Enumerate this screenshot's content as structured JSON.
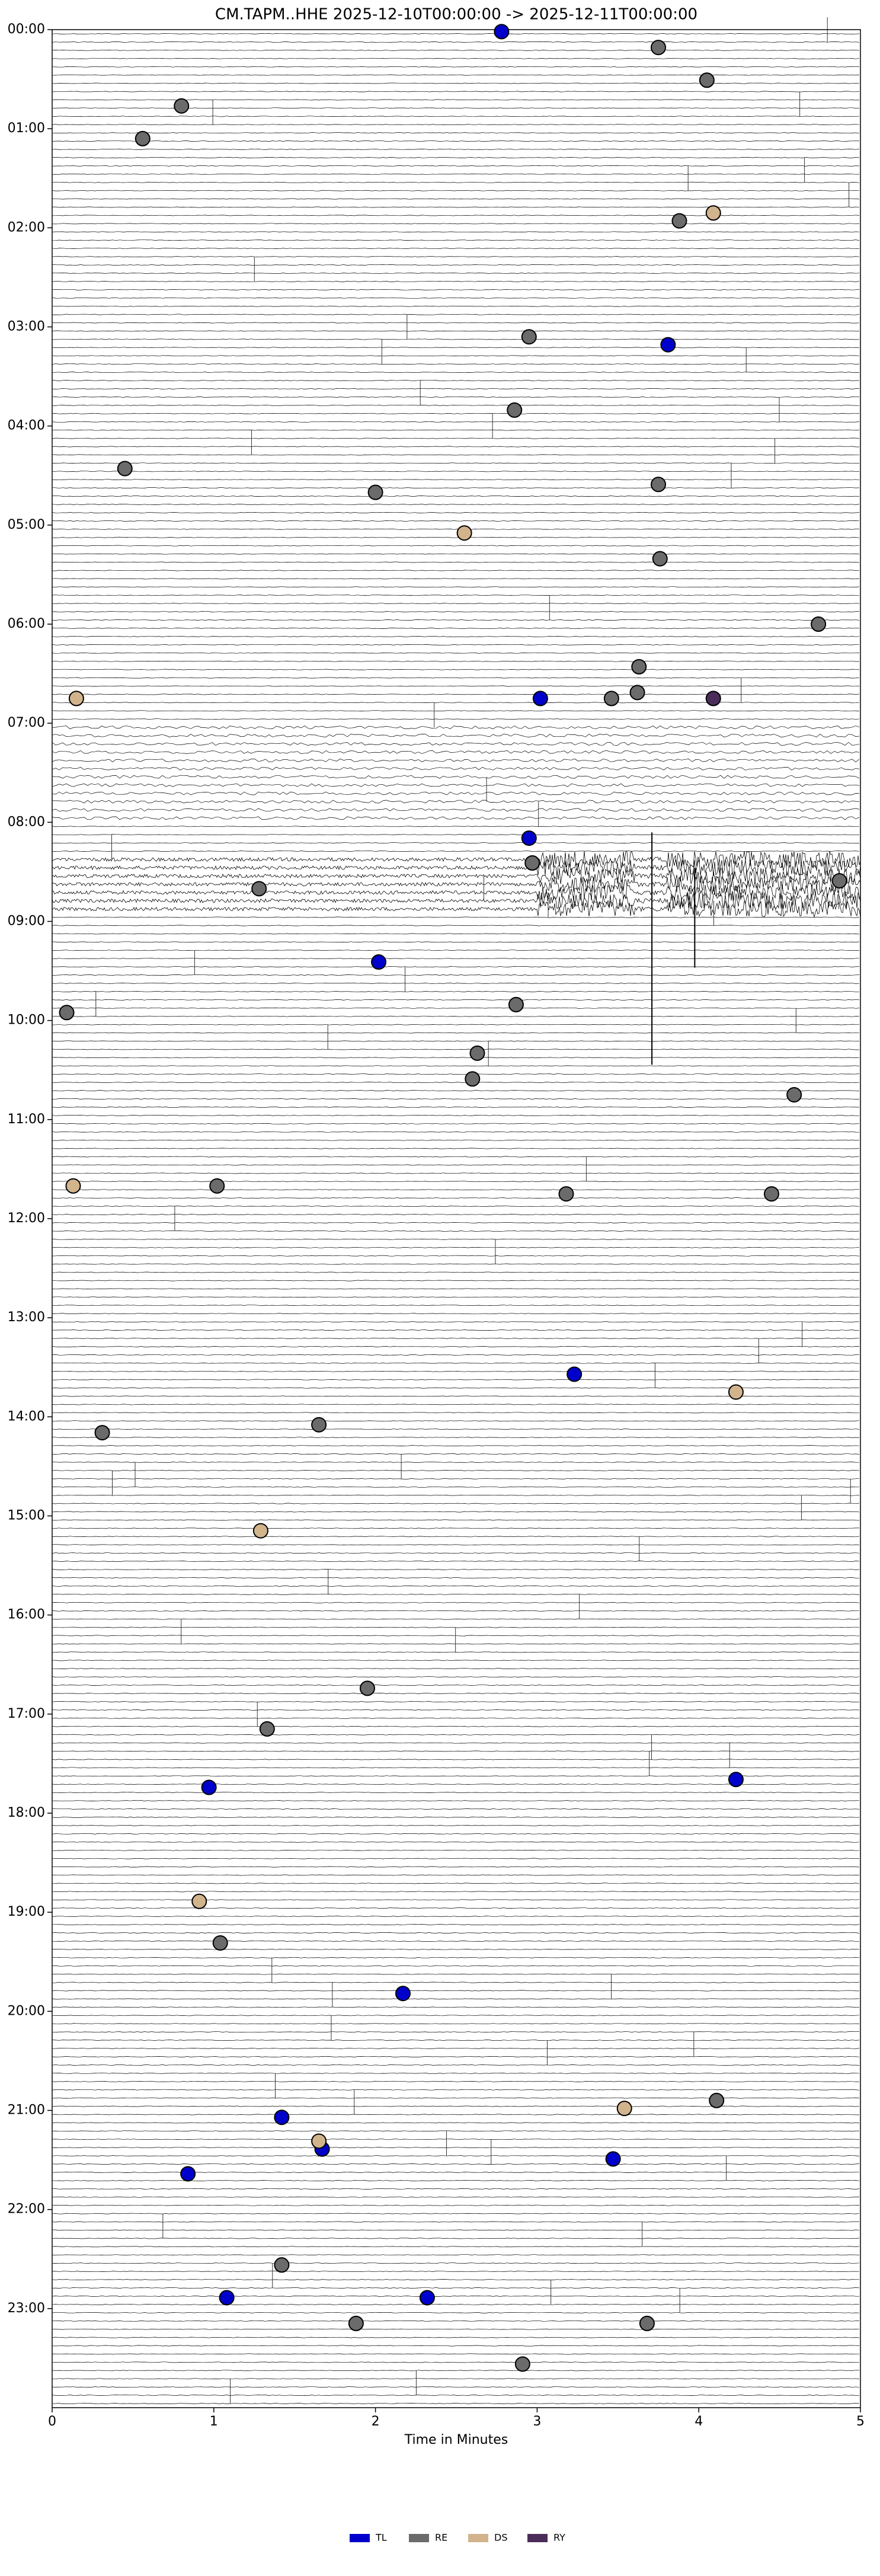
{
  "chart_data": {
    "type": "scatter",
    "title": "CM.TAPM..HHE  2025-12-10T00:00:00 -> 2025-12-11T00:00:00",
    "x_label": "Time in Minutes",
    "xlim": [
      0,
      5
    ],
    "xticks": [
      0,
      1,
      2,
      3,
      4,
      5
    ],
    "ylim": [
      0,
      24
    ],
    "y_inverted": true,
    "yticks": [
      {
        "value": 0,
        "label": "00:00"
      },
      {
        "value": 1,
        "label": "01:00"
      },
      {
        "value": 2,
        "label": "02:00"
      },
      {
        "value": 3,
        "label": "03:00"
      },
      {
        "value": 4,
        "label": "04:00"
      },
      {
        "value": 5,
        "label": "05:00"
      },
      {
        "value": 6,
        "label": "06:00"
      },
      {
        "value": 7,
        "label": "07:00"
      },
      {
        "value": 8,
        "label": "08:00"
      },
      {
        "value": 9,
        "label": "09:00"
      },
      {
        "value": 10,
        "label": "10:00"
      },
      {
        "value": 11,
        "label": "11:00"
      },
      {
        "value": 12,
        "label": "12:00"
      },
      {
        "value": 13,
        "label": "13:00"
      },
      {
        "value": 14,
        "label": "14:00"
      },
      {
        "value": 15,
        "label": "15:00"
      },
      {
        "value": 16,
        "label": "16:00"
      },
      {
        "value": 17,
        "label": "17:00"
      },
      {
        "value": 18,
        "label": "18:00"
      },
      {
        "value": 19,
        "label": "19:00"
      },
      {
        "value": 20,
        "label": "20:00"
      },
      {
        "value": 21,
        "label": "21:00"
      },
      {
        "value": 22,
        "label": "22:00"
      },
      {
        "value": 23,
        "label": "23:00"
      }
    ],
    "legend": "bottom",
    "series": [
      {
        "name": "TL",
        "color": "#0000cc",
        "x": [
          2.78,
          3.81,
          3.02,
          2.95,
          2.02,
          3.23,
          0.97,
          4.23,
          2.17,
          1.42,
          1.67,
          3.47,
          0.84,
          1.08,
          2.32
        ],
        "y": [
          0.02,
          3.18,
          6.75,
          8.16,
          9.41,
          13.57,
          17.74,
          17.66,
          19.82,
          21.07,
          21.39,
          21.49,
          21.64,
          22.89,
          22.89
        ]
      },
      {
        "name": "RE",
        "color": "#6b6b6b",
        "x": [
          3.75,
          4.05,
          0.8,
          0.56,
          3.88,
          2.95,
          2.86,
          0.45,
          3.75,
          2.0,
          3.76,
          4.74,
          3.63,
          3.46,
          3.62,
          2.97,
          1.28,
          4.87,
          0.09,
          2.87,
          2.63,
          2.6,
          4.59,
          1.02,
          3.18,
          4.45,
          0.31,
          1.65,
          1.95,
          1.33,
          1.04,
          4.11,
          1.42,
          1.88,
          3.68,
          2.91
        ],
        "y": [
          0.18,
          0.51,
          0.77,
          1.1,
          1.93,
          3.1,
          3.84,
          4.43,
          4.59,
          4.67,
          5.34,
          6.0,
          6.43,
          6.75,
          6.69,
          8.41,
          8.67,
          8.59,
          9.92,
          9.84,
          10.33,
          10.59,
          10.75,
          11.67,
          11.75,
          11.75,
          14.16,
          14.08,
          16.74,
          17.15,
          19.31,
          20.9,
          22.56,
          23.15,
          23.15,
          23.56
        ]
      },
      {
        "name": "DS",
        "color": "#d2b48c",
        "x": [
          4.09,
          2.55,
          0.15,
          0.13,
          4.23,
          1.29,
          0.91,
          3.54,
          1.65
        ],
        "y": [
          1.85,
          5.08,
          6.75,
          11.67,
          13.75,
          15.15,
          18.89,
          20.98,
          21.31
        ]
      },
      {
        "name": "RY",
        "color": "#4b2d5a",
        "x": [
          4.09
        ],
        "y": [
          6.75
        ]
      }
    ]
  }
}
